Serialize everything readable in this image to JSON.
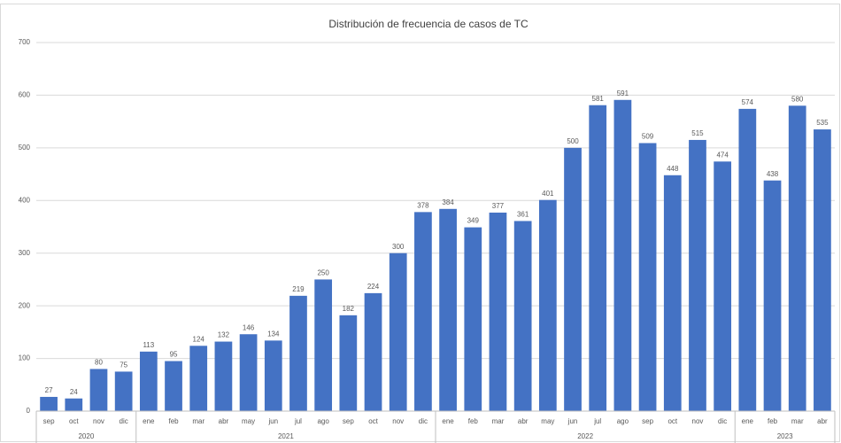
{
  "chart_data": {
    "type": "bar",
    "title": "Distribución de frecuencia de casos de TC",
    "color": "#4472c4",
    "grid": true,
    "ylim": [
      0,
      700
    ],
    "yticks": [
      0,
      100,
      200,
      300,
      400,
      500,
      600,
      700
    ],
    "groups": [
      {
        "name": "2020",
        "categories": [
          "sep",
          "oct",
          "nov",
          "dic"
        ],
        "values": [
          27,
          24,
          80,
          75
        ]
      },
      {
        "name": "2021",
        "categories": [
          "ene",
          "feb",
          "mar",
          "abr",
          "may",
          "jun",
          "jul",
          "ago",
          "sep",
          "oct",
          "nov",
          "dic"
        ],
        "values": [
          113,
          95,
          124,
          132,
          146,
          134,
          219,
          250,
          182,
          224,
          300,
          378
        ]
      },
      {
        "name": "2022",
        "categories": [
          "ene",
          "feb",
          "mar",
          "abr",
          "may",
          "jun",
          "jul",
          "ago",
          "sep",
          "oct",
          "nov",
          "dic"
        ],
        "values": [
          384,
          349,
          377,
          361,
          401,
          500,
          581,
          591,
          509,
          448,
          515,
          474
        ]
      },
      {
        "name": "2023",
        "categories": [
          "ene",
          "feb",
          "mar",
          "abr"
        ],
        "values": [
          574,
          438,
          580,
          535
        ]
      }
    ]
  }
}
